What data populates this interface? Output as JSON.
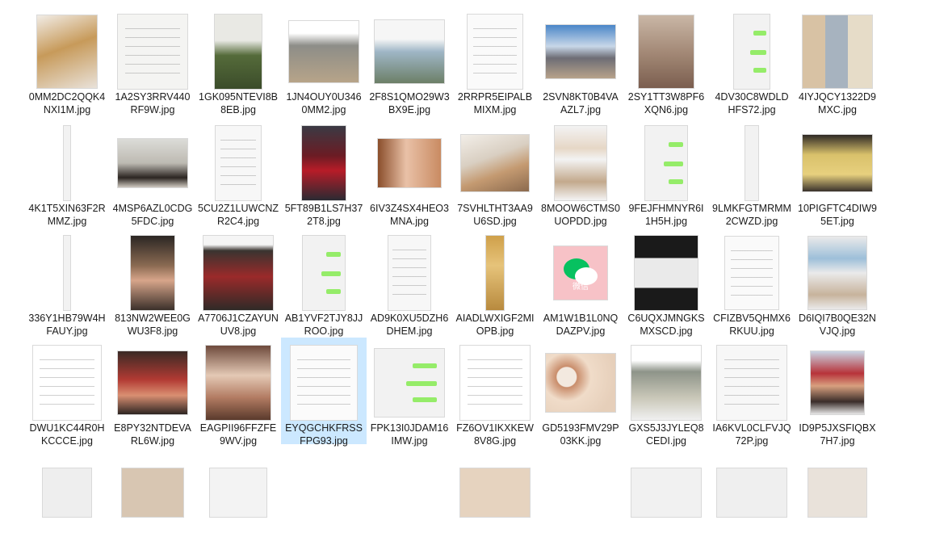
{
  "files": [
    {
      "name": "0MM2DC2QQK4NXI1M.jpg",
      "col": 0,
      "row": 0,
      "style": {
        "w": 74,
        "h": 90,
        "bg": "linear-gradient(160deg,#f1ece6 0%,#c79a5a 45%,#e9e2da 100%)"
      }
    },
    {
      "name": "1A2SY3RRV440RF9W.jpg",
      "col": 1,
      "row": 0,
      "style": {
        "w": 86,
        "h": 92,
        "bg": "#f4f4f2",
        "lines": true
      }
    },
    {
      "name": "1GK095NTEVI8B8EB.jpg",
      "col": 2,
      "row": 0,
      "style": {
        "w": 58,
        "h": 92,
        "bg": "linear-gradient(to bottom,#e9e9e4 0%,#e9e9e4 35%,#556b3a 55%,#3b4c2a 100%)"
      }
    },
    {
      "name": "1JN4OUY0U3460MM2.jpg",
      "col": 3,
      "row": 0,
      "style": {
        "w": 86,
        "h": 76,
        "bg": "linear-gradient(to bottom,#ffffff 0%,#ffffff 20%,#8d8d88 40%,#b7a489 100%)"
      }
    },
    {
      "name": "2F8S1QMO29W3BX9E.jpg",
      "col": 4,
      "row": 0,
      "style": {
        "w": 86,
        "h": 78,
        "bg": "linear-gradient(to bottom,#f6f6f6 0%,#f6f6f6 30%,#9fb6c6 50%,#6c7f67 100%)"
      }
    },
    {
      "name": "2RRPR5EIPALBMIXM.jpg",
      "col": 5,
      "row": 0,
      "style": {
        "w": 68,
        "h": 92,
        "bg": "#fafafa",
        "lines": true
      }
    },
    {
      "name": "2SVN8KT0B4VAAZL7.jpg",
      "col": 6,
      "row": 0,
      "style": {
        "w": 86,
        "h": 66,
        "bg": "linear-gradient(to bottom,#4a86c8 0%,#c8d7e8 40%,#6d6d75 62%,#b7a28a 100%)"
      }
    },
    {
      "name": "2SY1TT3W8PF6XQN6.jpg",
      "col": 7,
      "row": 0,
      "style": {
        "w": 68,
        "h": 90,
        "bg": "linear-gradient(to bottom,#c9b7a6 0%,#a48a77 50%,#7b5e4f 100%)"
      }
    },
    {
      "name": "4DV30C8WDLDHFS72.jpg",
      "col": 8,
      "row": 0,
      "style": {
        "w": 44,
        "h": 92,
        "bg": "#f2f2f2",
        "green": true
      }
    },
    {
      "name": "4IYJQCY1322D9MXC.jpg",
      "col": 9,
      "row": 0,
      "style": {
        "w": 86,
        "h": 90,
        "bg": "repeating-linear-gradient(90deg,#d8c2a4 0,#d8c2a4 28px,#a7b3bf 28px,#a7b3bf 56px,#e6dcc8 56px,#e6dcc8 86px)"
      }
    },
    {
      "name": "4K1T5XIN63F2RMMZ.jpg",
      "col": 0,
      "row": 1,
      "style": {
        "w": 8,
        "h": 92,
        "bg": "#f2f2f2"
      }
    },
    {
      "name": "4MSP6AZL0CDG5FDC.jpg",
      "col": 1,
      "row": 1,
      "style": {
        "w": 86,
        "h": 60,
        "bg": "linear-gradient(to bottom,#dcdcd8 0%,#bdbab2 50%,#2b2521 80%,#cfc9c0 100%)"
      }
    },
    {
      "name": "5CU2Z1LUWCNZR2C4.jpg",
      "col": 2,
      "row": 1,
      "style": {
        "w": 56,
        "h": 92,
        "bg": "#f7f7f7",
        "lines": true
      }
    },
    {
      "name": "5FT89B1LS7H372T8.jpg",
      "col": 3,
      "row": 1,
      "style": {
        "w": 54,
        "h": 92,
        "bg": "linear-gradient(to bottom,#3a3a44 0%,#6b1c24 40%,#b71c28 60%,#2a2a32 100%)"
      }
    },
    {
      "name": "6IV3Z4SX4HEO3MNA.jpg",
      "col": 4,
      "row": 1,
      "style": {
        "w": 78,
        "h": 60,
        "bg": "linear-gradient(to right,#8b4e2b 0%,#e9c1a7 45%,#c98b62 100%)"
      }
    },
    {
      "name": "7SVHLTHT3AA9U6SD.jpg",
      "col": 5,
      "row": 1,
      "style": {
        "w": 84,
        "h": 70,
        "bg": "linear-gradient(160deg,#f2eee8 0%,#d9cfc2 40%,#c49a71 65%,#8b6a4e 100%)"
      }
    },
    {
      "name": "8MOOW6CTMS0UOPDD.jpg",
      "col": 6,
      "row": 1,
      "style": {
        "w": 64,
        "h": 92,
        "bg": "linear-gradient(to bottom,#f3f3f3 0%,#e6d7c6 30%,#f3f3f3 45%,#c3a98c 75%,#f3f3f3 100%)"
      }
    },
    {
      "name": "9FEJFHMNYR6I1H5H.jpg",
      "col": 7,
      "row": 1,
      "style": {
        "w": 52,
        "h": 92,
        "bg": "#f2f2f2",
        "green": true
      }
    },
    {
      "name": "9LMKFGTMRMM2CWZD.jpg",
      "col": 8,
      "row": 1,
      "style": {
        "w": 16,
        "h": 92,
        "bg": "#f2f2f2"
      }
    },
    {
      "name": "10PIGFTC4DIW95ET.jpg",
      "col": 9,
      "row": 1,
      "style": {
        "w": 86,
        "h": 70,
        "bg": "linear-gradient(to bottom,#2f2a26 0%,#d9c16b 35%,#e7d07e 70%,#3a322c 100%)"
      }
    },
    {
      "name": "336Y1HB79W4HFAUY.jpg",
      "col": 0,
      "row": 2,
      "style": {
        "w": 8,
        "h": 92,
        "bg": "#f2f2f2"
      }
    },
    {
      "name": "813NW2WEE0GWU3F8.jpg",
      "col": 1,
      "row": 2,
      "style": {
        "w": 54,
        "h": 92,
        "bg": "linear-gradient(to bottom,#2b2623 0%,#8a6a52 40%,#d7a58a 60%,#3b302a 100%)"
      }
    },
    {
      "name": "A7706J1CZAYUNUV8.jpg",
      "col": 2,
      "row": 2,
      "style": {
        "w": 86,
        "h": 92,
        "bg": "linear-gradient(to bottom,#f5f5f5 0%,#f5f5f5 12%,#3a3430 20%,#9a2a2a 55%,#2f2a27 100%)"
      }
    },
    {
      "name": "AB1YVF2TJY8JJROO.jpg",
      "col": 3,
      "row": 2,
      "style": {
        "w": 52,
        "h": 92,
        "bg": "#f2f2f2",
        "green": true
      }
    },
    {
      "name": "AD9K0XU5DZH6DHEM.jpg",
      "col": 4,
      "row": 2,
      "style": {
        "w": 52,
        "h": 92,
        "bg": "#f7f7f7",
        "lines": true
      }
    },
    {
      "name": "AIADLWXIGF2MIOPB.jpg",
      "col": 5,
      "row": 2,
      "style": {
        "w": 22,
        "h": 92,
        "bg": "linear-gradient(to bottom,#cfa04a 0%,#e6c37a 40%,#b88a3e 100%)"
      }
    },
    {
      "name": "AM1W1B1L0NQDAZPV.jpg",
      "col": 6,
      "row": 2,
      "style": {
        "w": 66,
        "h": 66,
        "bg": "#f7c2c7",
        "wechat": true
      }
    },
    {
      "name": "C6UQXJMNGKSMXSCD.jpg",
      "col": 7,
      "row": 2,
      "style": {
        "w": 78,
        "h": 92,
        "bg": "linear-gradient(to bottom,#1a1a1a 0%,#1a1a1a 30%,#eaeaea 30%,#eaeaea 70%,#1a1a1a 70%)"
      }
    },
    {
      "name": "CFIZBV5QHMX6RKUU.jpg",
      "col": 8,
      "row": 2,
      "style": {
        "w": 66,
        "h": 90,
        "bg": "#fafafa",
        "lines": true
      }
    },
    {
      "name": "D6IQI7B0QE32NVJQ.jpg",
      "col": 9,
      "row": 2,
      "style": {
        "w": 72,
        "h": 90,
        "bg": "linear-gradient(to bottom,#eaeaea 0%,#9dbfd9 30%,#eaeaea 50%,#c7b39c 80%,#eaeaea 100%)"
      }
    },
    {
      "name": "DWU1KC44R0HKCCCE.jpg",
      "col": 0,
      "row": 3,
      "style": {
        "w": 84,
        "h": 92,
        "bg": "#ffffff",
        "lines": true
      }
    },
    {
      "name": "E8PY32NTDEVARL6W.jpg",
      "col": 1,
      "row": 3,
      "style": {
        "w": 86,
        "h": 78,
        "bg": "linear-gradient(to bottom,#3a2a25 0%,#b23a33 45%,#d98f72 70%,#2d2522 100%)"
      }
    },
    {
      "name": "EAGPII96FFZFE9WV.jpg",
      "col": 2,
      "row": 3,
      "style": {
        "w": 80,
        "h": 92,
        "bg": "linear-gradient(to bottom,#6e4a3c 0%,#e4c9b5 40%,#b27b62 70%,#5a3a2c 100%)"
      }
    },
    {
      "name": "EYQGCHKFRSSFPG93.jpg",
      "col": 3,
      "row": 3,
      "selected": true,
      "style": {
        "w": 82,
        "h": 92,
        "bg": "#fbfbfb",
        "lines": true
      }
    },
    {
      "name": "FPK13I0JDAM16IMW.jpg",
      "col": 4,
      "row": 3,
      "style": {
        "w": 86,
        "h": 84,
        "bg": "#f2f2f2",
        "green": true
      }
    },
    {
      "name": "FZ6OV1IKXKEW8V8G.jpg",
      "col": 5,
      "row": 3,
      "style": {
        "w": 86,
        "h": 92,
        "bg": "#ffffff",
        "lines": true
      }
    },
    {
      "name": "GD5193FMV29P03KK.jpg",
      "col": 6,
      "row": 3,
      "style": {
        "w": 86,
        "h": 72,
        "bg": "radial-gradient(circle at 30% 40%,#f3e9df 0,#f3e9df 12px,#c98d6b 13px,#f0dcc9 30px,#e6cfba 60px)"
      }
    },
    {
      "name": "GXS5J3JYLEQ8CEDI.jpg",
      "col": 7,
      "row": 3,
      "style": {
        "w": 86,
        "h": 92,
        "bg": "linear-gradient(to bottom,#ffffff 0%,#ffffff 20%,#8e9489 35%,#c9c7b8 70%,#f0f0f0 100%)"
      }
    },
    {
      "name": "IA6KVL0CLFVJQ72P.jpg",
      "col": 8,
      "row": 3,
      "style": {
        "w": 86,
        "h": 92,
        "bg": "#f7f7f7",
        "lines": true
      }
    },
    {
      "name": "ID9P5JXSFIQBX7H7.jpg",
      "col": 9,
      "row": 3,
      "style": {
        "w": 66,
        "h": 78,
        "bg": "linear-gradient(to bottom,#c9d5e4 0%,#b7333a 35%,#d8a07f 55%,#3a2d2a 80%,#e7e7e7 100%)"
      }
    },
    {
      "name": "",
      "col": 0,
      "row": 4,
      "style": {
        "w": 60,
        "h": 60,
        "bg": "#eeeeee"
      }
    },
    {
      "name": "",
      "col": 1,
      "row": 4,
      "style": {
        "w": 76,
        "h": 60,
        "bg": "#d8c6b2"
      }
    },
    {
      "name": "",
      "col": 2,
      "row": 4,
      "style": {
        "w": 70,
        "h": 60,
        "bg": "#f3f3f3"
      }
    },
    {
      "name": "",
      "col": 5,
      "row": 4,
      "style": {
        "w": 86,
        "h": 60,
        "bg": "#e6d3bf"
      }
    },
    {
      "name": "",
      "col": 7,
      "row": 4,
      "style": {
        "w": 86,
        "h": 60,
        "bg": "#f1f1f1"
      }
    },
    {
      "name": "",
      "col": 8,
      "row": 4,
      "style": {
        "w": 86,
        "h": 60,
        "bg": "#efefef"
      }
    },
    {
      "name": "",
      "col": 9,
      "row": 4,
      "style": {
        "w": 72,
        "h": 60,
        "bg": "#e9e2da"
      }
    }
  ],
  "wechat_label": "微信"
}
